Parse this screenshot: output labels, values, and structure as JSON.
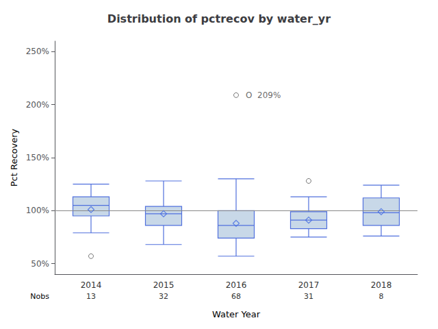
{
  "chart_data": {
    "type": "boxplot",
    "title": "Distribution of pctrecov by water_yr",
    "xlabel": "Water Year",
    "ylabel": "Pct Recovery",
    "categories": [
      "2014",
      "2015",
      "2016",
      "2017",
      "2018"
    ],
    "nobs_label": "Nobs",
    "nobs": [
      13,
      32,
      68,
      31,
      8
    ],
    "boxes": {
      "whislo": [
        79,
        68,
        57,
        75,
        76
      ],
      "q1": [
        95,
        86,
        74,
        83,
        86
      ],
      "median": [
        105,
        97,
        86,
        91,
        98
      ],
      "q3": [
        113,
        104,
        100,
        99,
        112
      ],
      "whishi": [
        125,
        128,
        130,
        113,
        124
      ],
      "color": "#c8d8e8"
    },
    "mean": {
      "values": [
        101,
        97,
        88,
        91,
        99
      ],
      "marker": "diamond",
      "color": "#4169e1"
    },
    "outliers": {
      "values": [
        [
          57
        ],
        [],
        [
          209
        ],
        [
          128
        ],
        []
      ],
      "marker": "circle",
      "color": "#555555"
    },
    "reference_line": {
      "value": 100,
      "color": "#888888"
    },
    "annotations": [
      {
        "x": "2016",
        "y": 209,
        "text": "O  209%"
      }
    ],
    "ylim": [
      40,
      260
    ],
    "yticks": [
      {
        "value": 50,
        "label": "50%"
      },
      {
        "value": 100,
        "label": "100%"
      },
      {
        "value": 150,
        "label": "150%"
      },
      {
        "value": 200,
        "label": "200%"
      },
      {
        "value": 250,
        "label": "250%"
      }
    ],
    "grid": false
  }
}
